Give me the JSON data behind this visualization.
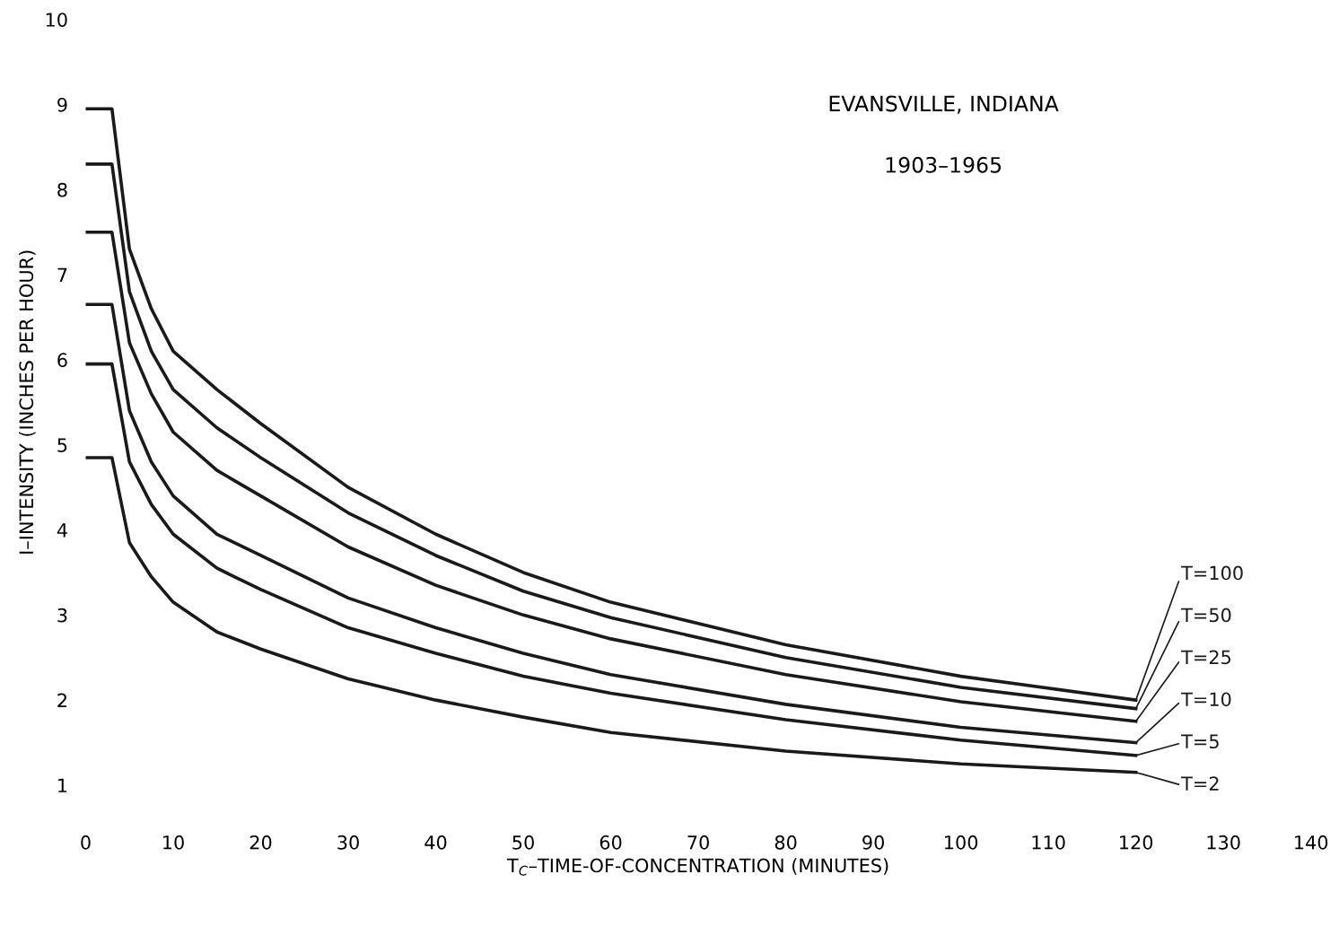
{
  "chart_data": {
    "type": "line",
    "title": "EVANSVILLE, INDIANA",
    "subtitle": "1903–1965",
    "xlabel": "T$_{C}$–TIME-OF-CONCENTRATION (MINUTES)",
    "ylabel": "I–INTENSITY (INCHES PER HOUR)",
    "x": [
      0,
      3,
      5,
      7.5,
      10,
      15,
      20,
      30,
      40,
      50,
      60,
      80,
      100,
      120
    ],
    "series": [
      {
        "name": "T=100",
        "color": "#1a1a1a",
        "values": [
          8.95,
          8.95,
          7.3,
          6.6,
          6.1,
          5.65,
          5.25,
          4.5,
          3.95,
          3.5,
          3.15,
          2.65,
          2.28,
          2.0
        ]
      },
      {
        "name": "T=50",
        "color": "#1a1a1a",
        "values": [
          8.3,
          8.3,
          6.8,
          6.1,
          5.65,
          5.2,
          4.85,
          4.2,
          3.7,
          3.28,
          2.97,
          2.5,
          2.15,
          1.9
        ]
      },
      {
        "name": "T=25",
        "color": "#1a1a1a",
        "values": [
          7.5,
          7.5,
          6.2,
          5.6,
          5.15,
          4.7,
          4.4,
          3.8,
          3.35,
          3.0,
          2.72,
          2.3,
          1.98,
          1.75
        ]
      },
      {
        "name": "T=10",
        "color": "#1a1a1a",
        "values": [
          6.65,
          6.65,
          5.4,
          4.8,
          4.4,
          3.95,
          3.7,
          3.2,
          2.85,
          2.55,
          2.3,
          1.95,
          1.68,
          1.5
        ]
      },
      {
        "name": "T=5",
        "color": "#1a1a1a",
        "values": [
          5.95,
          5.95,
          4.8,
          4.3,
          3.95,
          3.55,
          3.3,
          2.85,
          2.55,
          2.28,
          2.08,
          1.77,
          1.53,
          1.35
        ]
      },
      {
        "name": "T=2",
        "color": "#1a1a1a",
        "values": [
          4.85,
          4.85,
          3.85,
          3.45,
          3.15,
          2.8,
          2.6,
          2.25,
          2.0,
          1.8,
          1.62,
          1.4,
          1.25,
          1.15
        ]
      }
    ],
    "xlim": [
      0,
      140
    ],
    "xticks": [
      0,
      10,
      20,
      30,
      40,
      50,
      60,
      70,
      80,
      90,
      100,
      110,
      120,
      130,
      140
    ],
    "ylim": [
      1,
      10
    ],
    "yticks": [
      1,
      2,
      3,
      4,
      5,
      6,
      7,
      8,
      9,
      10
    ],
    "grid": false,
    "legend": "right",
    "marker": "none",
    "line_style": "solid"
  }
}
